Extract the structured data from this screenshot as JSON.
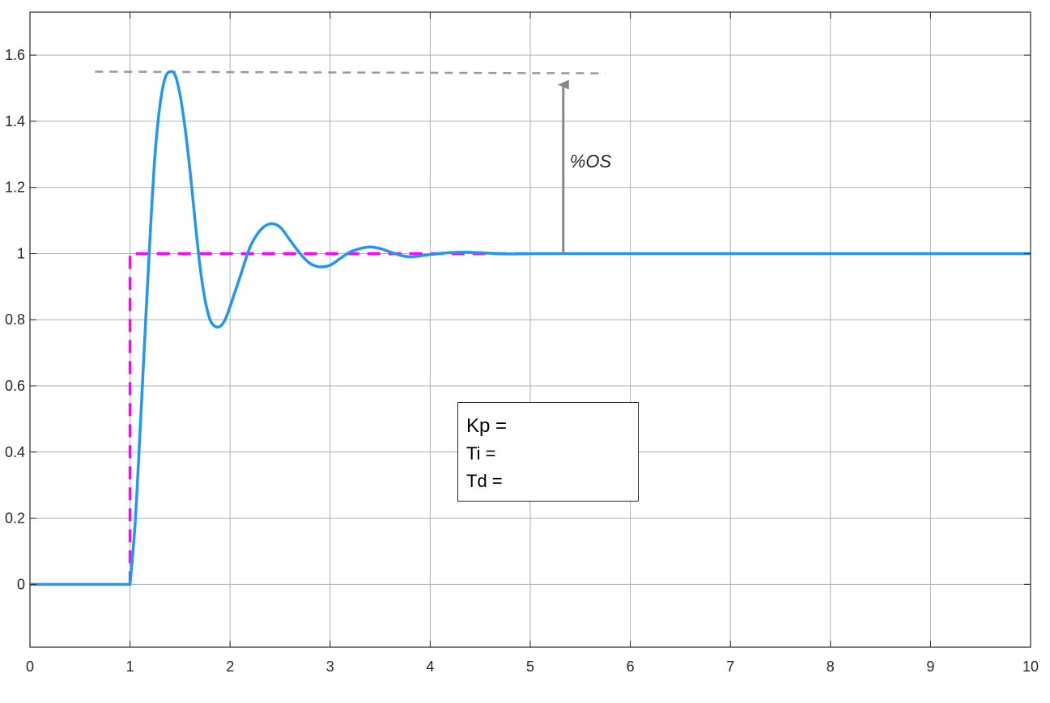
{
  "chart_data": {
    "type": "line",
    "title": "",
    "xlabel": "",
    "ylabel": "",
    "xlim": [
      0,
      10
    ],
    "ylim": [
      -0.19,
      1.73
    ],
    "grid": true,
    "xticks": [
      "0",
      "1",
      "2",
      "3",
      "4",
      "5",
      "6",
      "7",
      "8",
      "9",
      "10"
    ],
    "yticks": [
      "0",
      "0.2",
      "0.4",
      "0.6",
      "0.8",
      "1",
      "1.2",
      "1.4",
      "1.6"
    ],
    "series": [
      {
        "role": "step-response",
        "color": "#2196f3",
        "style": "solid",
        "x": [
          0,
          1.0,
          1.05,
          1.1,
          1.15,
          1.2,
          1.25,
          1.3,
          1.35,
          1.4,
          1.45,
          1.5,
          1.55,
          1.6,
          1.65,
          1.7,
          1.75,
          1.8,
          1.85,
          1.9,
          1.95,
          2.0,
          2.1,
          2.2,
          2.3,
          2.4,
          2.5,
          2.6,
          2.7,
          2.8,
          2.9,
          3.0,
          3.1,
          3.2,
          3.3,
          3.4,
          3.5,
          3.6,
          3.7,
          3.8,
          3.9,
          4.0,
          4.2,
          4.4,
          4.6,
          4.8,
          5.0,
          5.5,
          6.0,
          7.0,
          8.0,
          9.0,
          10.0
        ],
        "y": [
          0,
          0,
          0.18,
          0.46,
          0.76,
          1.05,
          1.3,
          1.45,
          1.53,
          1.55,
          1.54,
          1.48,
          1.38,
          1.25,
          1.1,
          0.96,
          0.86,
          0.8,
          0.78,
          0.78,
          0.8,
          0.84,
          0.93,
          1.02,
          1.07,
          1.09,
          1.08,
          1.04,
          1.0,
          0.97,
          0.96,
          0.965,
          0.985,
          1.005,
          1.015,
          1.02,
          1.015,
          1.005,
          0.995,
          0.99,
          0.993,
          0.997,
          1.003,
          1.004,
          1.001,
          0.999,
          1.0,
          1.0,
          1.0,
          1.0,
          1.0,
          1.0,
          1.0
        ]
      },
      {
        "role": "reference-step",
        "color": "#ff00ff",
        "style": "dashed",
        "x": [
          1,
          1,
          5
        ],
        "y": [
          0,
          1,
          1
        ]
      },
      {
        "role": "peak-level",
        "color": "#999999",
        "style": "dashed",
        "x": [
          0.65,
          5.75
        ],
        "y": [
          1.55,
          1.545
        ]
      }
    ],
    "annotations": [
      {
        "type": "arrow",
        "x": 5.33,
        "y_from": 1.0,
        "y_to": 1.54,
        "color": "#888888",
        "label": "%OS"
      }
    ]
  },
  "param_box": {
    "kp_label": "Kp =",
    "ti_label": "Ti =",
    "td_label": "Td ="
  }
}
